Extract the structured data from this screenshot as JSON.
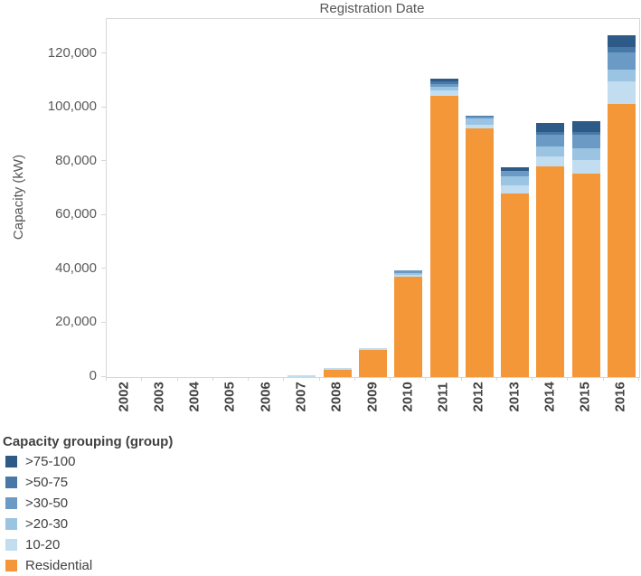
{
  "title": "Registration Date",
  "y_axis": {
    "title": "Capacity (kW)",
    "ticks": [
      {
        "value": 0,
        "label": "0"
      },
      {
        "value": 20000,
        "label": "20,000"
      },
      {
        "value": 40000,
        "label": "40,000"
      },
      {
        "value": 60000,
        "label": "60,000"
      },
      {
        "value": 80000,
        "label": "80,000"
      },
      {
        "value": 100000,
        "label": "100,000"
      },
      {
        "value": 120000,
        "label": "120,000"
      }
    ]
  },
  "legend": {
    "title": "Capacity grouping (group)",
    "items": [
      {
        "label": ">75-100",
        "color": "#2E5A87"
      },
      {
        "label": ">50-75",
        "color": "#4878A8"
      },
      {
        "label": ">30-50",
        "color": "#6B9BC4"
      },
      {
        "label": ">20-30",
        "color": "#9AC4E1"
      },
      {
        "label": "10-20",
        "color": "#C2DDF0"
      },
      {
        "label": "Residential",
        "color": "#F49738"
      }
    ]
  },
  "chart_data": {
    "type": "bar",
    "stacked": true,
    "title": "Registration Date",
    "xlabel": "",
    "ylabel": "Capacity (kW)",
    "ylim": [
      0,
      133000
    ],
    "grid": false,
    "legend_position": "bottom-left",
    "categories": [
      "2002",
      "2003",
      "2004",
      "2005",
      "2006",
      "2007",
      "2008",
      "2009",
      "2010",
      "2011",
      "2012",
      "2013",
      "2014",
      "2015",
      "2016"
    ],
    "series": [
      {
        "name": "Residential",
        "color": "#F49738",
        "values": [
          0,
          0,
          0,
          0,
          0,
          0,
          2800,
          10000,
          37200,
          104300,
          92300,
          68300,
          78200,
          75600,
          101500
        ]
      },
      {
        "name": "10-20",
        "color": "#C2DDF0",
        "values": [
          0,
          0,
          0,
          0,
          0,
          700,
          700,
          600,
          700,
          2300,
          1500,
          2800,
          3600,
          5100,
          8500
        ]
      },
      {
        "name": ">20-30",
        "color": "#9AC4E1",
        "values": [
          0,
          0,
          0,
          0,
          0,
          0,
          0,
          0,
          900,
          1100,
          2300,
          3400,
          3900,
          4200,
          4300
        ]
      },
      {
        "name": ">30-50",
        "color": "#6B9BC4",
        "values": [
          0,
          0,
          0,
          0,
          0,
          0,
          0,
          0,
          1000,
          1100,
          700,
          2200,
          4400,
          5000,
          6400
        ]
      },
      {
        "name": ">50-75",
        "color": "#4878A8",
        "values": [
          0,
          0,
          0,
          0,
          0,
          0,
          0,
          0,
          0,
          1100,
          300,
          0,
          1000,
          1200,
          2000
        ]
      },
      {
        "name": ">75-100",
        "color": "#2E5A87",
        "values": [
          0,
          0,
          0,
          0,
          0,
          0,
          0,
          0,
          0,
          1100,
          0,
          1100,
          3400,
          4100,
          4400
        ]
      }
    ],
    "totals": [
      0,
      0,
      0,
      0,
      0,
      700,
      3500,
      10600,
      39800,
      111000,
      97100,
      77800,
      94500,
      95200,
      127100
    ]
  }
}
